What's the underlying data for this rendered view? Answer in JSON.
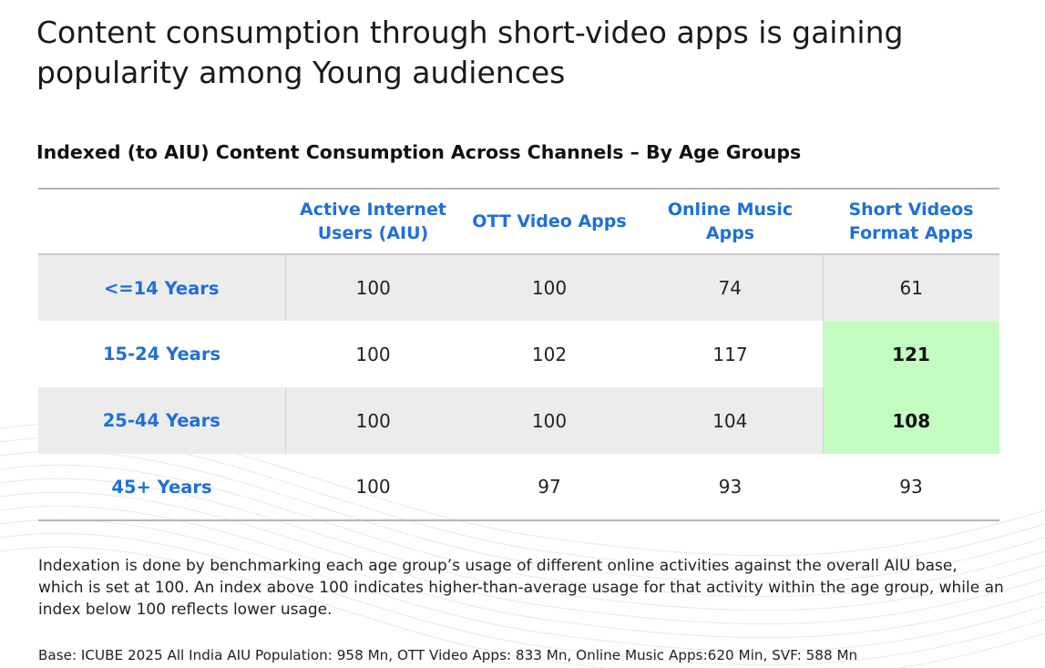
{
  "title": "Content consumption through short-video apps is gaining popularity among Young audiences",
  "chart_data": {
    "type": "table",
    "title": "Indexed (to AIU) Content Consumption Across Channels – By Age Groups",
    "columns": [
      "",
      "Active Internet Users (AIU)",
      "OTT Video Apps",
      "Online Music Apps",
      "Short Videos Format Apps"
    ],
    "rows": [
      {
        "label": "<=14 Years",
        "values": [
          "100",
          "100",
          "74",
          "61"
        ],
        "highlight": [
          false,
          false,
          false,
          false
        ],
        "shaded": true
      },
      {
        "label": "15-24 Years",
        "values": [
          "100",
          "102",
          "117",
          "121"
        ],
        "highlight": [
          false,
          false,
          false,
          true
        ],
        "shaded": false
      },
      {
        "label": "25-44 Years",
        "values": [
          "100",
          "100",
          "104",
          "108"
        ],
        "highlight": [
          false,
          false,
          false,
          true
        ],
        "shaded": true
      },
      {
        "label": "45+ Years",
        "values": [
          "100",
          "97",
          "93",
          "93"
        ],
        "highlight": [
          false,
          false,
          false,
          false
        ],
        "shaded": false
      }
    ],
    "colors": {
      "header_text": "#1f6fd8",
      "highlight": "#c3fbc0",
      "shade": "#ececec"
    }
  },
  "note": "Indexation is done by benchmarking each age group’s usage of different online activities against the overall AIU base, which is set at 100. An index above 100 indicates higher-than-average usage for that activity within the age group, while an index below 100 reflects lower usage.",
  "base": "Base: ICUBE 2025 All India AIU Population: 958 Mn, OTT Video Apps: 833 Mn, Online Music Apps:620 Min, SVF: 588 Mn"
}
